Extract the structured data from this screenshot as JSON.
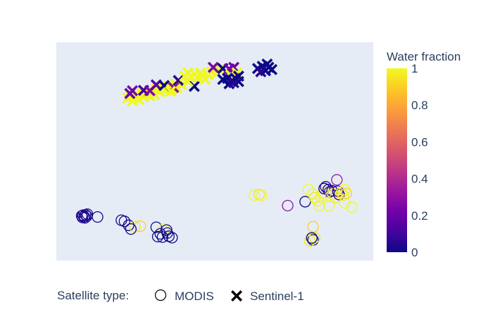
{
  "chart_data": {
    "type": "scatter",
    "title": "",
    "xlabel": "",
    "ylabel": "",
    "axes_visible": false,
    "grid": false,
    "xlim": [
      0,
      100
    ],
    "ylim": [
      0,
      100
    ],
    "plot_background": "#e5ecf6",
    "colorscale": {
      "name": "Plasma",
      "title": "Water fraction",
      "range": [
        0,
        1
      ],
      "ticks": [
        "0",
        "0.2",
        "0.4",
        "0.6",
        "0.8",
        "1"
      ],
      "stops": [
        [
          0.0,
          "#0d0887"
        ],
        [
          0.111,
          "#46039f"
        ],
        [
          0.222,
          "#7201a8"
        ],
        [
          0.333,
          "#9c179e"
        ],
        [
          0.444,
          "#bd3786"
        ],
        [
          0.556,
          "#d8576b"
        ],
        [
          0.667,
          "#ed7953"
        ],
        [
          0.778,
          "#fb9f3a"
        ],
        [
          0.889,
          "#fdca26"
        ],
        [
          1.0,
          "#f0f921"
        ]
      ]
    },
    "legend": {
      "title": "Satellite type:",
      "placement": "bottom-left",
      "orientation": "horizontal",
      "items": [
        {
          "name": "MODIS",
          "symbol": "circle-open"
        },
        {
          "name": "Sentinel-1",
          "symbol": "x"
        }
      ]
    },
    "series": [
      {
        "name": "MODIS",
        "symbol": "circle-open",
        "points": [
          {
            "x": 8.0,
            "y": 20.5,
            "v": 0.0
          },
          {
            "x": 8.4,
            "y": 20.8,
            "v": 0.0
          },
          {
            "x": 8.8,
            "y": 20.2,
            "v": 0.05
          },
          {
            "x": 9.2,
            "y": 21.0,
            "v": 0.0
          },
          {
            "x": 9.6,
            "y": 20.4,
            "v": 0.0
          },
          {
            "x": 8.2,
            "y": 19.8,
            "v": 0.1
          },
          {
            "x": 9.0,
            "y": 19.6,
            "v": 0.0
          },
          {
            "x": 9.8,
            "y": 21.3,
            "v": 0.05
          },
          {
            "x": 13.0,
            "y": 20.0,
            "v": 0.0
          },
          {
            "x": 20.5,
            "y": 18.5,
            "v": 0.0
          },
          {
            "x": 21.5,
            "y": 18.0,
            "v": 0.05
          },
          {
            "x": 22.8,
            "y": 16.2,
            "v": 0.0
          },
          {
            "x": 24.8,
            "y": 15.5,
            "v": 0.95
          },
          {
            "x": 26.5,
            "y": 15.8,
            "v": 0.9
          },
          {
            "x": 23.5,
            "y": 14.5,
            "v": 0.0
          },
          {
            "x": 31.5,
            "y": 15.3,
            "v": 0.0
          },
          {
            "x": 34.0,
            "y": 14.5,
            "v": 1.0
          },
          {
            "x": 34.8,
            "y": 14.0,
            "v": 0.0
          },
          {
            "x": 32.8,
            "y": 12.3,
            "v": 0.0
          },
          {
            "x": 35.0,
            "y": 12.6,
            "v": 0.05
          },
          {
            "x": 32.0,
            "y": 11.0,
            "v": 0.0
          },
          {
            "x": 33.5,
            "y": 10.8,
            "v": 0.0
          },
          {
            "x": 35.5,
            "y": 11.2,
            "v": 0.0
          },
          {
            "x": 36.5,
            "y": 10.5,
            "v": 0.0
          },
          {
            "x": 62.5,
            "y": 30.0,
            "v": 1.0
          },
          {
            "x": 64.0,
            "y": 30.3,
            "v": 0.95
          },
          {
            "x": 64.8,
            "y": 29.8,
            "v": 1.0
          },
          {
            "x": 73.0,
            "y": 25.2,
            "v": 0.3
          },
          {
            "x": 78.5,
            "y": 27.0,
            "v": 0.0
          },
          {
            "x": 79.5,
            "y": 32.5,
            "v": 1.0
          },
          {
            "x": 81.0,
            "y": 30.5,
            "v": 1.0
          },
          {
            "x": 81.5,
            "y": 28.8,
            "v": 0.95
          },
          {
            "x": 82.5,
            "y": 27.5,
            "v": 1.0
          },
          {
            "x": 83.5,
            "y": 29.2,
            "v": 1.0
          },
          {
            "x": 84.0,
            "y": 31.0,
            "v": 1.0
          },
          {
            "x": 84.5,
            "y": 33.0,
            "v": 0.0
          },
          {
            "x": 85.0,
            "y": 33.8,
            "v": 0.05
          },
          {
            "x": 85.8,
            "y": 32.5,
            "v": 0.0
          },
          {
            "x": 86.2,
            "y": 31.5,
            "v": 0.15
          },
          {
            "x": 87.0,
            "y": 32.0,
            "v": 0.0
          },
          {
            "x": 87.2,
            "y": 30.5,
            "v": 1.0
          },
          {
            "x": 86.5,
            "y": 29.5,
            "v": 1.0
          },
          {
            "x": 88.0,
            "y": 29.0,
            "v": 0.95
          },
          {
            "x": 88.8,
            "y": 31.8,
            "v": 0.1
          },
          {
            "x": 89.2,
            "y": 30.3,
            "v": 0.0
          },
          {
            "x": 90.0,
            "y": 31.2,
            "v": 1.0
          },
          {
            "x": 90.5,
            "y": 30.0,
            "v": 0.95
          },
          {
            "x": 91.0,
            "y": 32.5,
            "v": 1.0
          },
          {
            "x": 91.5,
            "y": 30.8,
            "v": 0.9
          },
          {
            "x": 88.5,
            "y": 37.0,
            "v": 0.35
          },
          {
            "x": 83.0,
            "y": 25.0,
            "v": 1.0
          },
          {
            "x": 86.0,
            "y": 25.0,
            "v": 1.0
          },
          {
            "x": 91.0,
            "y": 26.5,
            "v": 1.0
          },
          {
            "x": 93.2,
            "y": 24.5,
            "v": 1.0
          },
          {
            "x": 81.0,
            "y": 15.5,
            "v": 0.9
          },
          {
            "x": 80.5,
            "y": 10.0,
            "v": 1.0
          },
          {
            "x": 81.0,
            "y": 9.5,
            "v": 0.0
          },
          {
            "x": 80.0,
            "y": 9.0,
            "v": 0.95
          },
          {
            "x": 81.5,
            "y": 10.5,
            "v": 0.95
          },
          {
            "x": 80.6,
            "y": 10.4,
            "v": 0.0
          }
        ]
      },
      {
        "name": "Sentinel-1",
        "symbol": "x",
        "points": [
          {
            "x": 23.5,
            "y": 75.3,
            "v": 1.0
          },
          {
            "x": 24.5,
            "y": 74.7,
            "v": 1.0
          },
          {
            "x": 25.5,
            "y": 76.0,
            "v": 1.0
          },
          {
            "x": 22.5,
            "y": 74.5,
            "v": 1.0
          },
          {
            "x": 24.0,
            "y": 73.2,
            "v": 1.0
          },
          {
            "x": 26.0,
            "y": 73.8,
            "v": 1.0
          },
          {
            "x": 27.0,
            "y": 76.5,
            "v": 1.0
          },
          {
            "x": 27.5,
            "y": 75.0,
            "v": 1.0
          },
          {
            "x": 28.5,
            "y": 77.0,
            "v": 0.95
          },
          {
            "x": 29.5,
            "y": 75.5,
            "v": 1.0
          },
          {
            "x": 30.0,
            "y": 77.5,
            "v": 1.0
          },
          {
            "x": 31.0,
            "y": 76.0,
            "v": 1.0
          },
          {
            "x": 31.5,
            "y": 78.5,
            "v": 1.0
          },
          {
            "x": 32.5,
            "y": 77.3,
            "v": 1.0
          },
          {
            "x": 33.5,
            "y": 79.0,
            "v": 1.0
          },
          {
            "x": 34.5,
            "y": 78.0,
            "v": 1.0
          },
          {
            "x": 35.5,
            "y": 80.0,
            "v": 1.0
          },
          {
            "x": 36.5,
            "y": 78.5,
            "v": 1.0
          },
          {
            "x": 37.5,
            "y": 81.0,
            "v": 1.0
          },
          {
            "x": 38.0,
            "y": 79.0,
            "v": 1.0
          },
          {
            "x": 39.5,
            "y": 80.5,
            "v": 1.0
          },
          {
            "x": 24.0,
            "y": 77.8,
            "v": 0.25
          },
          {
            "x": 23.2,
            "y": 76.5,
            "v": 0.2
          },
          {
            "x": 27.5,
            "y": 78.0,
            "v": 0.1
          },
          {
            "x": 29.5,
            "y": 77.8,
            "v": 0.25
          },
          {
            "x": 31.5,
            "y": 80.5,
            "v": 0.15
          },
          {
            "x": 34.0,
            "y": 80.2,
            "v": 0.0
          },
          {
            "x": 38.5,
            "y": 82.5,
            "v": 0.05
          },
          {
            "x": 37.0,
            "y": 79.3,
            "v": 0.3
          },
          {
            "x": 36.0,
            "y": 77.5,
            "v": 1.0
          },
          {
            "x": 43.5,
            "y": 79.8,
            "v": 0.0
          },
          {
            "x": 41.5,
            "y": 82.0,
            "v": 1.0
          },
          {
            "x": 40.5,
            "y": 84.5,
            "v": 1.0
          },
          {
            "x": 41.5,
            "y": 86.0,
            "v": 1.0
          },
          {
            "x": 42.5,
            "y": 84.0,
            "v": 1.0
          },
          {
            "x": 43.5,
            "y": 85.5,
            "v": 1.0
          },
          {
            "x": 44.5,
            "y": 84.0,
            "v": 1.0
          },
          {
            "x": 45.5,
            "y": 86.0,
            "v": 1.0
          },
          {
            "x": 46.0,
            "y": 84.5,
            "v": 1.0
          },
          {
            "x": 47.0,
            "y": 83.0,
            "v": 1.0
          },
          {
            "x": 48.0,
            "y": 85.0,
            "v": 1.0
          },
          {
            "x": 49.0,
            "y": 86.5,
            "v": 1.0
          },
          {
            "x": 50.5,
            "y": 86.0,
            "v": 1.0
          },
          {
            "x": 51.5,
            "y": 87.5,
            "v": 1.0
          },
          {
            "x": 52.5,
            "y": 88.0,
            "v": 0.0
          },
          {
            "x": 49.5,
            "y": 88.5,
            "v": 0.25
          },
          {
            "x": 54.5,
            "y": 87.8,
            "v": 0.25
          },
          {
            "x": 56.0,
            "y": 88.5,
            "v": 0.2
          },
          {
            "x": 55.0,
            "y": 85.0,
            "v": 1.0
          },
          {
            "x": 57.0,
            "y": 86.0,
            "v": 1.0
          },
          {
            "x": 52.5,
            "y": 83.0,
            "v": 0.0
          },
          {
            "x": 54.0,
            "y": 83.5,
            "v": 0.0
          },
          {
            "x": 55.5,
            "y": 82.5,
            "v": 0.0
          },
          {
            "x": 56.5,
            "y": 83.5,
            "v": 0.0
          },
          {
            "x": 57.5,
            "y": 82.0,
            "v": 0.0
          },
          {
            "x": 54.5,
            "y": 81.0,
            "v": 0.0
          },
          {
            "x": 56.0,
            "y": 81.5,
            "v": 0.05
          },
          {
            "x": 57.5,
            "y": 84.5,
            "v": 0.0
          },
          {
            "x": 63.5,
            "y": 88.0,
            "v": 0.0
          },
          {
            "x": 65.0,
            "y": 89.0,
            "v": 0.0
          },
          {
            "x": 66.0,
            "y": 87.0,
            "v": 0.0
          },
          {
            "x": 67.0,
            "y": 88.5,
            "v": 0.0
          },
          {
            "x": 64.5,
            "y": 86.5,
            "v": 0.05
          },
          {
            "x": 66.5,
            "y": 90.0,
            "v": 0.0
          },
          {
            "x": 68.0,
            "y": 87.5,
            "v": 0.0
          }
        ]
      }
    ]
  }
}
